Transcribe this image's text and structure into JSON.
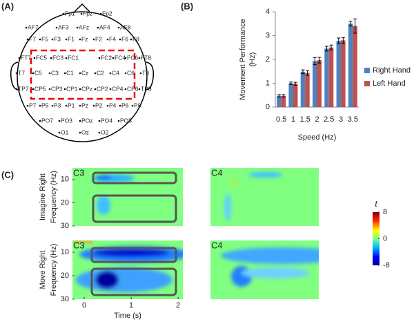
{
  "panel_labels": [
    "(A)",
    "(B)",
    "(C)"
  ],
  "electrode_map": {
    "electrodes": [
      "Fp1",
      "Fpz",
      "Fp2",
      "AF7",
      "AF3",
      "AFz",
      "AF4",
      "AF8",
      "F7",
      "F5",
      "F3",
      "F1",
      "Fz",
      "F2",
      "F4",
      "F6",
      "F8",
      "FT7",
      "FC5",
      "FC3",
      "FC1",
      "FC2",
      "FC4",
      "FC6",
      "FT8",
      "T7",
      "C5",
      "C3",
      "C1",
      "Cz",
      "C2",
      "C4",
      "C6",
      "T8",
      "TP7",
      "CP5",
      "CP3",
      "CP1",
      "CPz",
      "CP2",
      "CP4",
      "CP6",
      "TP8",
      "P7",
      "P5",
      "P3",
      "P1",
      "Pz",
      "P2",
      "P4",
      "P6",
      "P8",
      "PO7",
      "PO3",
      "POz",
      "PO4",
      "PO8",
      "O1",
      "Oz",
      "O2"
    ]
  },
  "chart_data": [
    {
      "type": "bar",
      "x_label": "Speed (Hz)",
      "y_label": [
        "Movement  Performance",
        "(Hz)"
      ],
      "categories": [
        "0.5",
        "1",
        "1.5",
        "2",
        "2.5",
        "3",
        "3.5"
      ],
      "series": [
        {
          "name": "Right Hand",
          "color": "#4f81bd",
          "values": [
            0.47,
            1.0,
            1.48,
            1.93,
            2.45,
            2.78,
            3.5
          ],
          "errors": [
            0.05,
            0.05,
            0.08,
            0.15,
            0.1,
            0.12,
            0.1
          ]
        },
        {
          "name": "Left Hand",
          "color": "#c0504d",
          "values": [
            0.47,
            0.98,
            1.43,
            1.97,
            2.5,
            2.8,
            3.4
          ],
          "errors": [
            0.05,
            0.06,
            0.1,
            0.12,
            0.1,
            0.12,
            0.3
          ]
        }
      ],
      "ylim": [
        0,
        4
      ],
      "yticks": [
        0,
        1,
        2,
        3,
        4
      ],
      "legend": "right"
    },
    {
      "type": "heatmap",
      "rows": [
        "Imagine Right",
        "Move Right"
      ],
      "columns": [
        "C3",
        "C4"
      ],
      "x_label": "Time (s)",
      "y_label": "Frequency (Hz)",
      "xlim": [
        -0.25,
        2.1
      ],
      "xticks": [
        0,
        1,
        2
      ],
      "ylim": [
        5,
        30
      ],
      "yticks": [
        10,
        20,
        30
      ],
      "colorbar_label": "t",
      "clim": [
        -8,
        8
      ],
      "cticks": [
        8,
        0,
        -8
      ]
    }
  ]
}
